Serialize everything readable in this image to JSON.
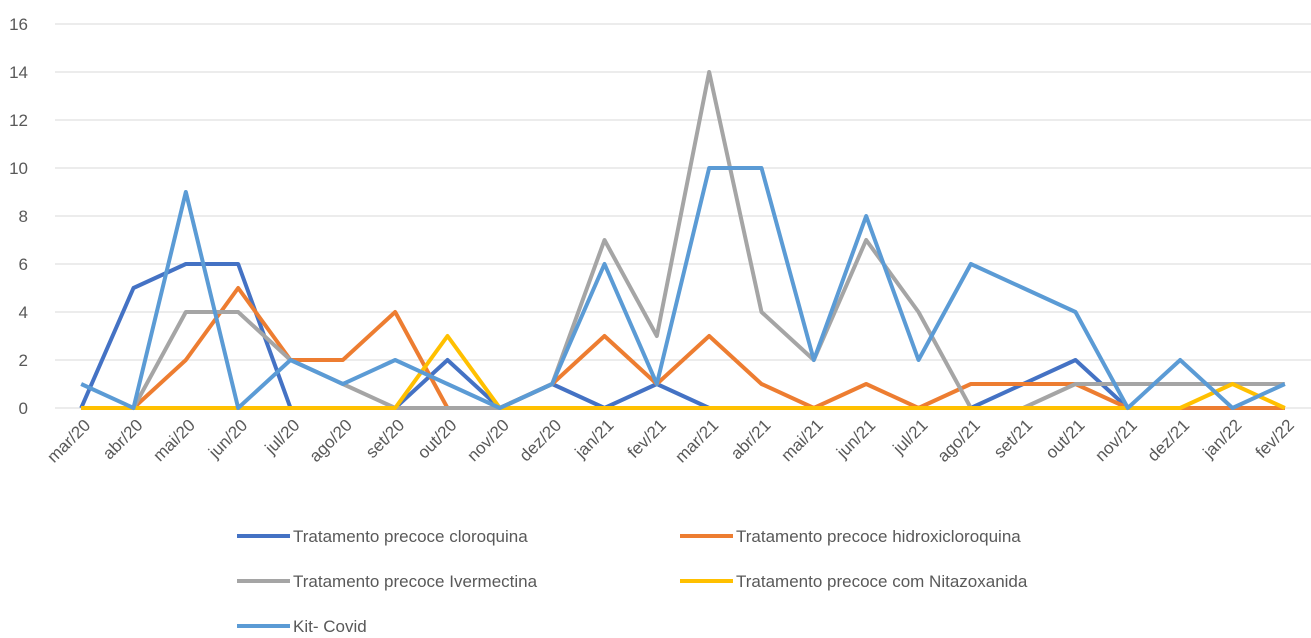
{
  "chart_data": {
    "type": "line",
    "categories": [
      "mar/20",
      "abr/20",
      "mai/20",
      "jun/20",
      "jul/20",
      "ago/20",
      "set/20",
      "out/20",
      "nov/20",
      "dez/20",
      "jan/21",
      "fev/21",
      "mar/21",
      "abr/21",
      "mai/21",
      "jun/21",
      "jul/21",
      "ago/21",
      "set/21",
      "out/21",
      "nov/21",
      "dez/21",
      "jan/22",
      "fev/22"
    ],
    "series": [
      {
        "name": "Tratamento precoce cloroquina",
        "color": "#4472c4",
        "values": [
          0,
          5,
          6,
          6,
          0,
          0,
          0,
          2,
          0,
          1,
          0,
          1,
          0,
          0,
          0,
          0,
          0,
          0,
          1,
          2,
          0,
          0,
          0,
          0
        ]
      },
      {
        "name": "Tratamento precoce hidroxicloroquina",
        "color": "#ed7d31",
        "values": [
          0,
          0,
          2,
          5,
          2,
          2,
          4,
          0,
          0,
          1,
          3,
          1,
          3,
          1,
          0,
          1,
          0,
          1,
          1,
          1,
          0,
          0,
          0,
          0
        ]
      },
      {
        "name": "Tratamento precoce Ivermectina",
        "color": "#a5a5a5",
        "values": [
          0,
          0,
          4,
          4,
          2,
          1,
          0,
          0,
          0,
          1,
          7,
          3,
          14,
          4,
          2,
          7,
          4,
          0,
          0,
          1,
          1,
          1,
          1,
          1
        ]
      },
      {
        "name": "Tratamento precoce com Nitazoxanida",
        "color": "#ffc000",
        "values": [
          0,
          0,
          0,
          0,
          0,
          0,
          0,
          3,
          0,
          0,
          0,
          0,
          0,
          0,
          0,
          0,
          0,
          0,
          0,
          0,
          0,
          0,
          1,
          0
        ]
      },
      {
        "name": "Kit- Covid",
        "color": "#5b9bd5",
        "values": [
          1,
          0,
          9,
          0,
          2,
          1,
          2,
          1,
          0,
          1,
          6,
          1,
          10,
          10,
          2,
          8,
          2,
          6,
          5,
          4,
          0,
          2,
          0,
          1
        ]
      }
    ],
    "ylim": [
      0,
      16
    ],
    "yticks": [
      0,
      2,
      4,
      6,
      8,
      10,
      12,
      14,
      16
    ],
    "grid": true
  }
}
